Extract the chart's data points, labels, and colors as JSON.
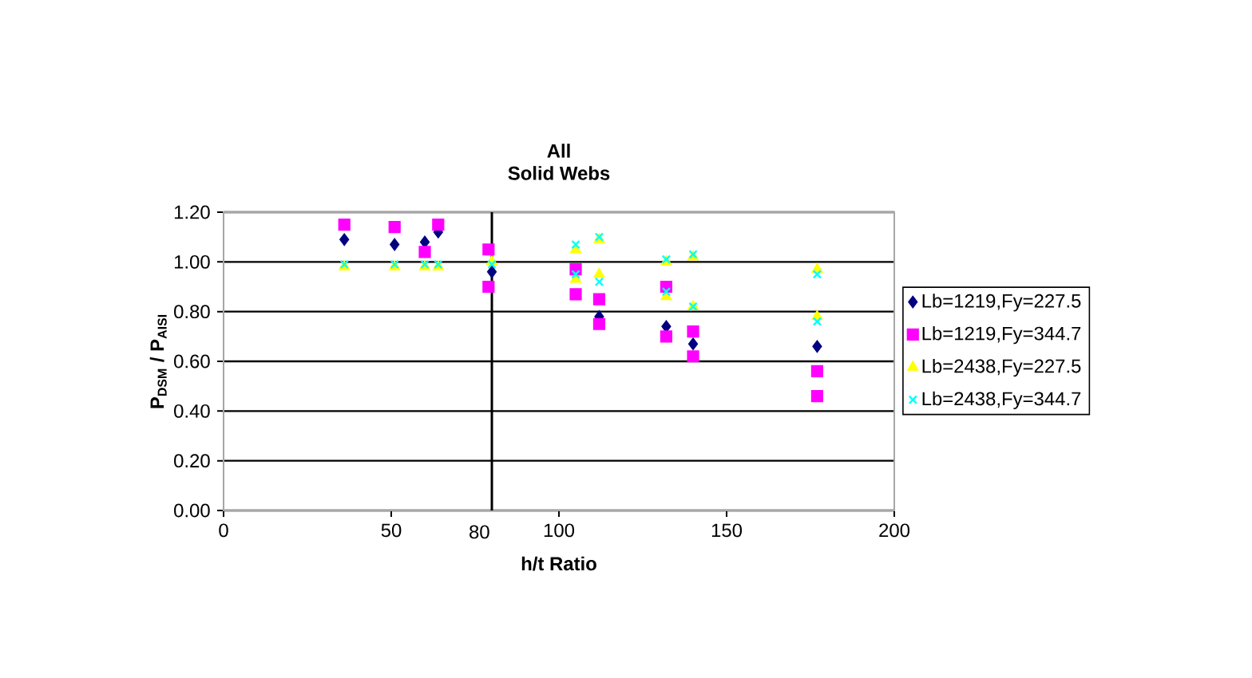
{
  "chart_data": {
    "type": "scatter",
    "title": "All",
    "subtitle": "Solid Webs",
    "xlabel": "h/t Ratio",
    "ylabel": "P$_{DSM}$ / P$_{AISI}$",
    "xlim": [
      0,
      200
    ],
    "xticks": [
      0,
      50,
      100,
      150,
      200
    ],
    "ylim": [
      0,
      1.2
    ],
    "yticks": [
      {
        "value": 0,
        "label": "0.00"
      },
      {
        "value": 0.2,
        "label": "0.20"
      },
      {
        "value": 0.4,
        "label": "0.40"
      },
      {
        "value": 0.6,
        "label": "0.60"
      },
      {
        "value": 0.8,
        "label": "0.80"
      },
      {
        "value": 1.0,
        "label": "1.00"
      },
      {
        "value": 1.2,
        "label": "1.20"
      }
    ],
    "grid": "y",
    "legend": "right",
    "ref_lines": [
      {
        "axis": "x",
        "value": 80,
        "label": "80",
        "color": "#000000"
      }
    ],
    "series": [
      {
        "name": "Lb=1219,Fy=227.5",
        "color": "#000080",
        "marker": "diamond",
        "x": [
          36,
          51,
          60,
          64,
          80,
          112,
          132,
          140,
          177
        ],
        "values": [
          1.09,
          1.07,
          1.08,
          1.12,
          0.96,
          0.78,
          0.74,
          0.67,
          0.66
        ]
      },
      {
        "name": "Lb=1219,Fy=344.7",
        "color": "#ff00ff",
        "marker": "square",
        "x": [
          36,
          51,
          60,
          64,
          79,
          79,
          105,
          105,
          112,
          112,
          132,
          132,
          140,
          140,
          177,
          177
        ],
        "values": [
          1.15,
          1.14,
          1.04,
          1.15,
          1.05,
          0.9,
          0.97,
          0.87,
          0.85,
          0.75,
          0.9,
          0.7,
          0.72,
          0.62,
          0.56,
          0.46
        ]
      },
      {
        "name": "Lb=2438,Fy=227.5",
        "color": "#ffff00",
        "marker": "triangle",
        "x": [
          36,
          51,
          60,
          64,
          80,
          105,
          105,
          112,
          112,
          132,
          132,
          140,
          140,
          177,
          177
        ],
        "values": [
          0.98,
          0.98,
          0.98,
          0.98,
          1.0,
          1.05,
          0.93,
          1.09,
          0.95,
          1.0,
          0.86,
          1.02,
          0.82,
          0.97,
          0.78
        ]
      },
      {
        "name": "Lb=2438,Fy=344.7",
        "color": "#00ffff",
        "marker": "cross",
        "x": [
          36,
          51,
          60,
          64,
          80,
          105,
          105,
          112,
          112,
          132,
          132,
          140,
          140,
          177,
          177
        ],
        "values": [
          0.99,
          0.99,
          0.99,
          0.99,
          0.99,
          1.07,
          0.95,
          1.1,
          0.92,
          1.01,
          0.88,
          1.03,
          0.82,
          0.95,
          0.76
        ]
      }
    ]
  }
}
